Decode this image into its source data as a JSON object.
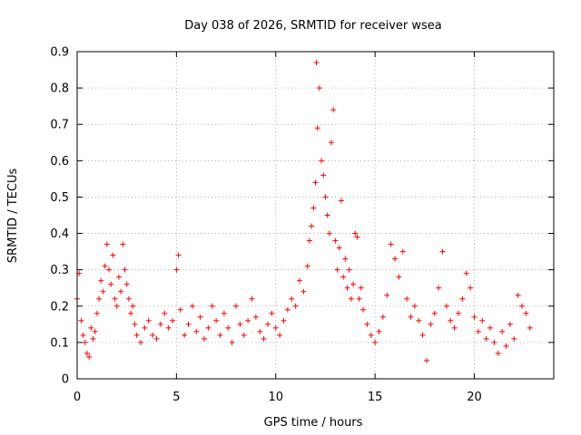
{
  "chart_data": {
    "type": "scatter",
    "title": "Day 038 of 2026, SRMTID for receiver wsea",
    "xlabel": "GPS time / hours",
    "ylabel": "SRMTID / TECUs",
    "xlim": [
      0,
      24
    ],
    "ylim": [
      0,
      0.9
    ],
    "xticks": [
      0,
      5,
      10,
      15,
      20
    ],
    "xtick_labels": [
      "0",
      "5",
      "10",
      "15",
      "20"
    ],
    "yticks": [
      0,
      0.1,
      0.2,
      0.3,
      0.4,
      0.5,
      0.6,
      0.7,
      0.8,
      0.9
    ],
    "ytick_labels": [
      "0",
      "0.1",
      "0.2",
      "0.3",
      "0.4",
      "0.5",
      "0.6",
      "0.7",
      "0.8",
      "0.9"
    ],
    "grid": true,
    "marker": "+",
    "color": "#ff0000",
    "series": [
      {
        "name": "wsea",
        "x": [
          0.0,
          0.1,
          0.2,
          0.3,
          0.4,
          0.5,
          0.6,
          0.7,
          0.8,
          0.9,
          1.0,
          1.1,
          1.2,
          1.3,
          1.4,
          1.5,
          1.6,
          1.7,
          1.8,
          1.9,
          2.0,
          2.1,
          2.2,
          2.3,
          2.4,
          2.5,
          2.6,
          2.7,
          2.8,
          2.9,
          3.0,
          3.2,
          3.4,
          3.6,
          3.8,
          4.0,
          4.2,
          4.4,
          4.6,
          4.8,
          5.0,
          5.1,
          5.2,
          5.4,
          5.6,
          5.8,
          6.0,
          6.2,
          6.4,
          6.6,
          6.8,
          7.0,
          7.2,
          7.4,
          7.6,
          7.8,
          8.0,
          8.2,
          8.4,
          8.6,
          8.8,
          9.0,
          9.2,
          9.4,
          9.6,
          9.8,
          10.0,
          10.2,
          10.4,
          10.6,
          10.8,
          11.0,
          11.2,
          11.4,
          11.6,
          11.7,
          11.8,
          11.9,
          12.0,
          12.05,
          12.1,
          12.2,
          12.3,
          12.4,
          12.5,
          12.6,
          12.7,
          12.8,
          12.9,
          13.0,
          13.1,
          13.2,
          13.3,
          13.4,
          13.5,
          13.6,
          13.7,
          13.8,
          13.9,
          14.0,
          14.1,
          14.2,
          14.3,
          14.4,
          14.6,
          14.8,
          15.0,
          15.2,
          15.4,
          15.6,
          15.8,
          16.0,
          16.2,
          16.4,
          16.6,
          16.8,
          17.0,
          17.2,
          17.4,
          17.6,
          17.8,
          18.0,
          18.2,
          18.4,
          18.6,
          18.8,
          19.0,
          19.2,
          19.4,
          19.6,
          19.8,
          20.0,
          20.2,
          20.4,
          20.6,
          20.8,
          21.0,
          21.2,
          21.4,
          21.6,
          21.8,
          22.0,
          22.2,
          22.4,
          22.6,
          22.8
        ],
        "y": [
          0.22,
          0.29,
          0.16,
          0.12,
          0.1,
          0.07,
          0.06,
          0.14,
          0.11,
          0.13,
          0.18,
          0.22,
          0.27,
          0.24,
          0.31,
          0.37,
          0.3,
          0.26,
          0.34,
          0.22,
          0.2,
          0.28,
          0.24,
          0.37,
          0.3,
          0.26,
          0.22,
          0.18,
          0.2,
          0.15,
          0.12,
          0.1,
          0.14,
          0.16,
          0.12,
          0.11,
          0.15,
          0.18,
          0.14,
          0.16,
          0.3,
          0.34,
          0.19,
          0.12,
          0.15,
          0.2,
          0.13,
          0.17,
          0.11,
          0.14,
          0.2,
          0.16,
          0.12,
          0.18,
          0.14,
          0.1,
          0.2,
          0.15,
          0.12,
          0.16,
          0.22,
          0.17,
          0.13,
          0.11,
          0.15,
          0.18,
          0.14,
          0.12,
          0.16,
          0.19,
          0.22,
          0.2,
          0.27,
          0.24,
          0.31,
          0.38,
          0.42,
          0.47,
          0.54,
          0.87,
          0.69,
          0.8,
          0.6,
          0.56,
          0.5,
          0.45,
          0.4,
          0.65,
          0.74,
          0.38,
          0.3,
          0.36,
          0.49,
          0.28,
          0.33,
          0.25,
          0.3,
          0.22,
          0.26,
          0.4,
          0.39,
          0.22,
          0.25,
          0.19,
          0.15,
          0.12,
          0.1,
          0.13,
          0.17,
          0.23,
          0.37,
          0.33,
          0.28,
          0.35,
          0.22,
          0.17,
          0.2,
          0.16,
          0.12,
          0.05,
          0.15,
          0.18,
          0.25,
          0.35,
          0.2,
          0.16,
          0.14,
          0.18,
          0.22,
          0.29,
          0.25,
          0.17,
          0.13,
          0.16,
          0.11,
          0.14,
          0.1,
          0.07,
          0.13,
          0.09,
          0.15,
          0.11,
          0.23,
          0.2,
          0.18,
          0.14
        ]
      }
    ]
  }
}
